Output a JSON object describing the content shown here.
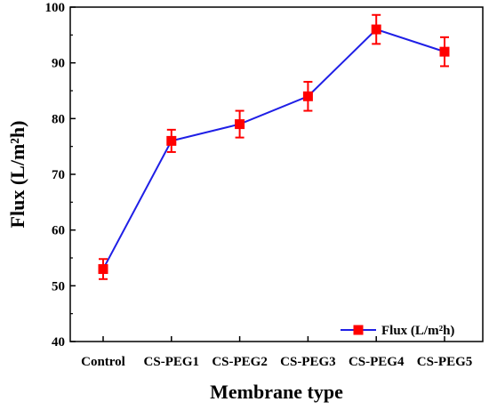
{
  "chart_data": {
    "type": "line",
    "categories": [
      "Control",
      "CS-PEG1",
      "CS-PEG2",
      "CS-PEG3",
      "CS-PEG4",
      "CS-PEG5"
    ],
    "series": [
      {
        "name": "Flux (L/m²h)",
        "values": [
          53,
          76,
          79,
          84,
          96,
          92
        ],
        "errors": [
          1.8,
          2.0,
          2.4,
          2.6,
          2.6,
          2.6
        ],
        "line_color": "#1f1fe6",
        "marker_color": "#ff0000"
      }
    ],
    "xlabel": "Membrane type",
    "ylabel": "Flux (L/m²h)",
    "ylim": [
      40,
      100
    ],
    "yticks": [
      40,
      50,
      60,
      70,
      80,
      90,
      100
    ],
    "grid": false,
    "legend_position": "bottom-right"
  }
}
